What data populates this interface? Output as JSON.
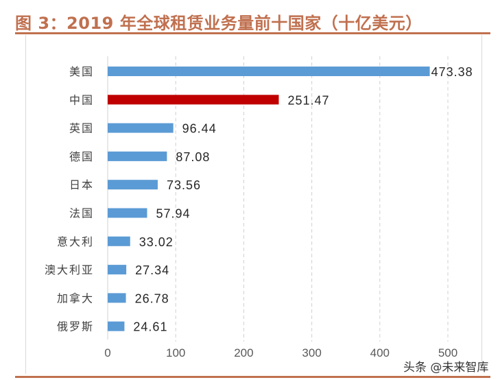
{
  "title": "图 3：2019 年全球租赁业务量前十国家（十亿美元）",
  "watermark": "头条 @未来智库",
  "colors": {
    "accent": "#c0704f",
    "bar": "#5b9bd5",
    "highlight": "#c00000"
  },
  "chart_data": {
    "type": "bar",
    "orientation": "horizontal",
    "title": "",
    "categories": [
      "美国",
      "中国",
      "英国",
      "德国",
      "日本",
      "法国",
      "意大利",
      "澳大利亚",
      "加拿大",
      "俄罗斯"
    ],
    "values": [
      473.38,
      251.47,
      96.44,
      87.08,
      73.56,
      57.94,
      33.02,
      27.34,
      26.78,
      24.61
    ],
    "labels": [
      "473.38",
      "251.47",
      "96.44",
      "87.08",
      "73.56",
      "57.94",
      "33.02",
      "27.34",
      "26.78",
      "24.61"
    ],
    "highlight_category": "中国",
    "xlim": [
      0,
      500
    ],
    "xticks": [
      0,
      100,
      200,
      300,
      400,
      500
    ],
    "grid": "vertical dashed",
    "legend": "none"
  }
}
